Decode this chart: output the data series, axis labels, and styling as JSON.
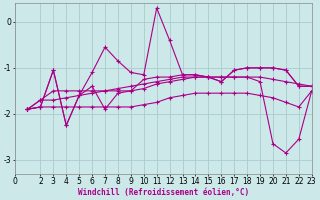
{
  "xlabel": "Windchill (Refroidissement éolien,°C)",
  "background_color": "#cce8e8",
  "grid_color": "#aacccc",
  "line_color": "#aa0088",
  "xlim": [
    0,
    23
  ],
  "ylim": [
    -3.3,
    0.4
  ],
  "yticks": [
    0,
    -1,
    -2,
    -3
  ],
  "xtick_labels": [
    "0",
    "2",
    "3",
    "4",
    "5",
    "6",
    "7",
    "8",
    "9",
    "10",
    "11",
    "12",
    "13",
    "14",
    "15",
    "16",
    "17",
    "18",
    "19",
    "20",
    "21",
    "22",
    "23"
  ],
  "xtick_vals": [
    0,
    2,
    3,
    4,
    5,
    6,
    7,
    8,
    9,
    10,
    11,
    12,
    13,
    14,
    15,
    16,
    17,
    18,
    19,
    20,
    21,
    22,
    23
  ],
  "series": [
    {
      "x": [
        1,
        2,
        3,
        4,
        5,
        6,
        7,
        8,
        9,
        10,
        11,
        12,
        13,
        14,
        15,
        16,
        17,
        18,
        19,
        20,
        21,
        22,
        23
      ],
      "y": [
        -1.9,
        -1.85,
        -1.05,
        -2.25,
        -1.6,
        -1.1,
        -0.55,
        -0.85,
        -1.1,
        -1.15,
        0.3,
        -0.4,
        -1.15,
        -1.15,
        -1.2,
        -1.3,
        -1.05,
        -1.0,
        -1.0,
        -1.0,
        -1.05,
        -1.4,
        -1.4
      ]
    },
    {
      "x": [
        1,
        2,
        3,
        4,
        5,
        6,
        7,
        8,
        9,
        10,
        11,
        12,
        13,
        14,
        15,
        16,
        17,
        18,
        19,
        20,
        21,
        22,
        23
      ],
      "y": [
        -1.9,
        -1.85,
        -1.05,
        -2.25,
        -1.6,
        -1.4,
        -1.9,
        -1.55,
        -1.5,
        -1.25,
        -1.2,
        -1.2,
        -1.15,
        -1.15,
        -1.2,
        -1.3,
        -1.05,
        -1.0,
        -1.0,
        -1.0,
        -1.05,
        -1.4,
        -1.4
      ]
    },
    {
      "x": [
        1,
        2,
        3,
        4,
        5,
        6,
        7,
        8,
        9,
        10,
        11,
        12,
        13,
        14,
        15,
        16,
        17,
        18,
        19,
        20,
        21,
        22,
        23
      ],
      "y": [
        -1.9,
        -1.7,
        -1.7,
        -1.65,
        -1.6,
        -1.55,
        -1.5,
        -1.45,
        -1.4,
        -1.35,
        -1.3,
        -1.25,
        -1.2,
        -1.2,
        -1.2,
        -1.2,
        -1.2,
        -1.2,
        -1.2,
        -1.25,
        -1.3,
        -1.35,
        -1.4
      ]
    },
    {
      "x": [
        1,
        2,
        3,
        4,
        5,
        6,
        7,
        8,
        9,
        10,
        11,
        12,
        13,
        14,
        15,
        16,
        17,
        18,
        19,
        20,
        21,
        22,
        23
      ],
      "y": [
        -1.9,
        -1.7,
        -1.5,
        -1.5,
        -1.5,
        -1.5,
        -1.5,
        -1.5,
        -1.5,
        -1.45,
        -1.35,
        -1.3,
        -1.25,
        -1.2,
        -1.2,
        -1.2,
        -1.2,
        -1.2,
        -1.3,
        -2.65,
        -2.85,
        -2.55,
        -1.5
      ]
    },
    {
      "x": [
        1,
        2,
        3,
        4,
        5,
        6,
        7,
        8,
        9,
        10,
        11,
        12,
        13,
        14,
        15,
        16,
        17,
        18,
        19,
        20,
        21,
        22,
        23
      ],
      "y": [
        -1.9,
        -1.85,
        -1.85,
        -1.85,
        -1.85,
        -1.85,
        -1.85,
        -1.85,
        -1.85,
        -1.8,
        -1.75,
        -1.65,
        -1.6,
        -1.55,
        -1.55,
        -1.55,
        -1.55,
        -1.55,
        -1.6,
        -1.65,
        -1.75,
        -1.85,
        -1.5
      ]
    }
  ]
}
